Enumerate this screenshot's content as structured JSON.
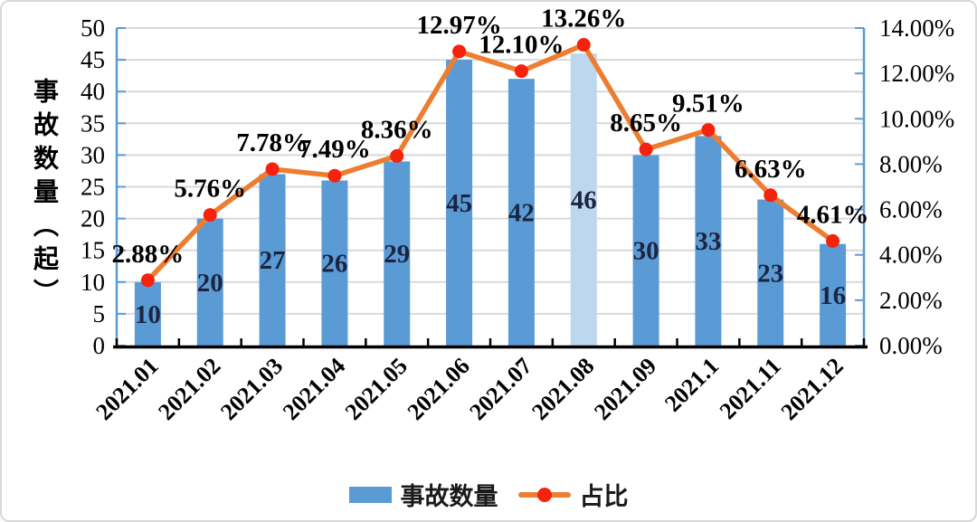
{
  "chart_data": {
    "type": "combo-bar-line",
    "categories": [
      "2021.01",
      "2021.02",
      "2021.03",
      "2021.04",
      "2021.05",
      "2021.06",
      "2021.07",
      "2021.08",
      "2021.09",
      "2021.1",
      "2021.11",
      "2021.12"
    ],
    "series": [
      {
        "name": "事故数量",
        "type": "bar",
        "axis": "left",
        "values": [
          10,
          20,
          27,
          26,
          29,
          45,
          42,
          46,
          30,
          33,
          23,
          16
        ],
        "color": "#5B9BD5",
        "highlight_index": 7,
        "highlight_color": "#BDD7EE",
        "value_label_color": "#1c2540"
      },
      {
        "name": "占比",
        "type": "line",
        "axis": "right",
        "values": [
          2.88,
          5.76,
          7.78,
          7.49,
          8.36,
          12.97,
          12.1,
          13.26,
          8.65,
          9.51,
          6.63,
          4.61
        ],
        "labels": [
          "2.88%",
          "5.76%",
          "7.78%",
          "7.49%",
          "8.36%",
          "12.97%",
          "12.10%",
          "13.26%",
          "8.65%",
          "9.51%",
          "6.63%",
          "4.61%"
        ],
        "color": "#ED7D31",
        "marker_color": "#F5220D",
        "label_color": "#000000"
      }
    ],
    "left_axis": {
      "title": "事故数量（起）",
      "min": 0,
      "max": 50,
      "step": 5,
      "tick_labels": [
        "0",
        "5",
        "10",
        "15",
        "20",
        "25",
        "30",
        "35",
        "40",
        "45",
        "50"
      ],
      "axis_color": "#5B9BD5",
      "label_color": "#000000"
    },
    "right_axis": {
      "min": 0,
      "max": 14,
      "step": 2,
      "tick_labels": [
        "0.00%",
        "2.00%",
        "4.00%",
        "6.00%",
        "8.00%",
        "10.00%",
        "12.00%",
        "14.00%"
      ],
      "axis_color": "#5B9BD5",
      "label_color": "#000000"
    },
    "x_axis": {
      "color": "#000000",
      "label_color": "#000000"
    },
    "grid": {
      "show": true,
      "color": "#D9D9D9"
    },
    "legend_position": "bottom"
  }
}
